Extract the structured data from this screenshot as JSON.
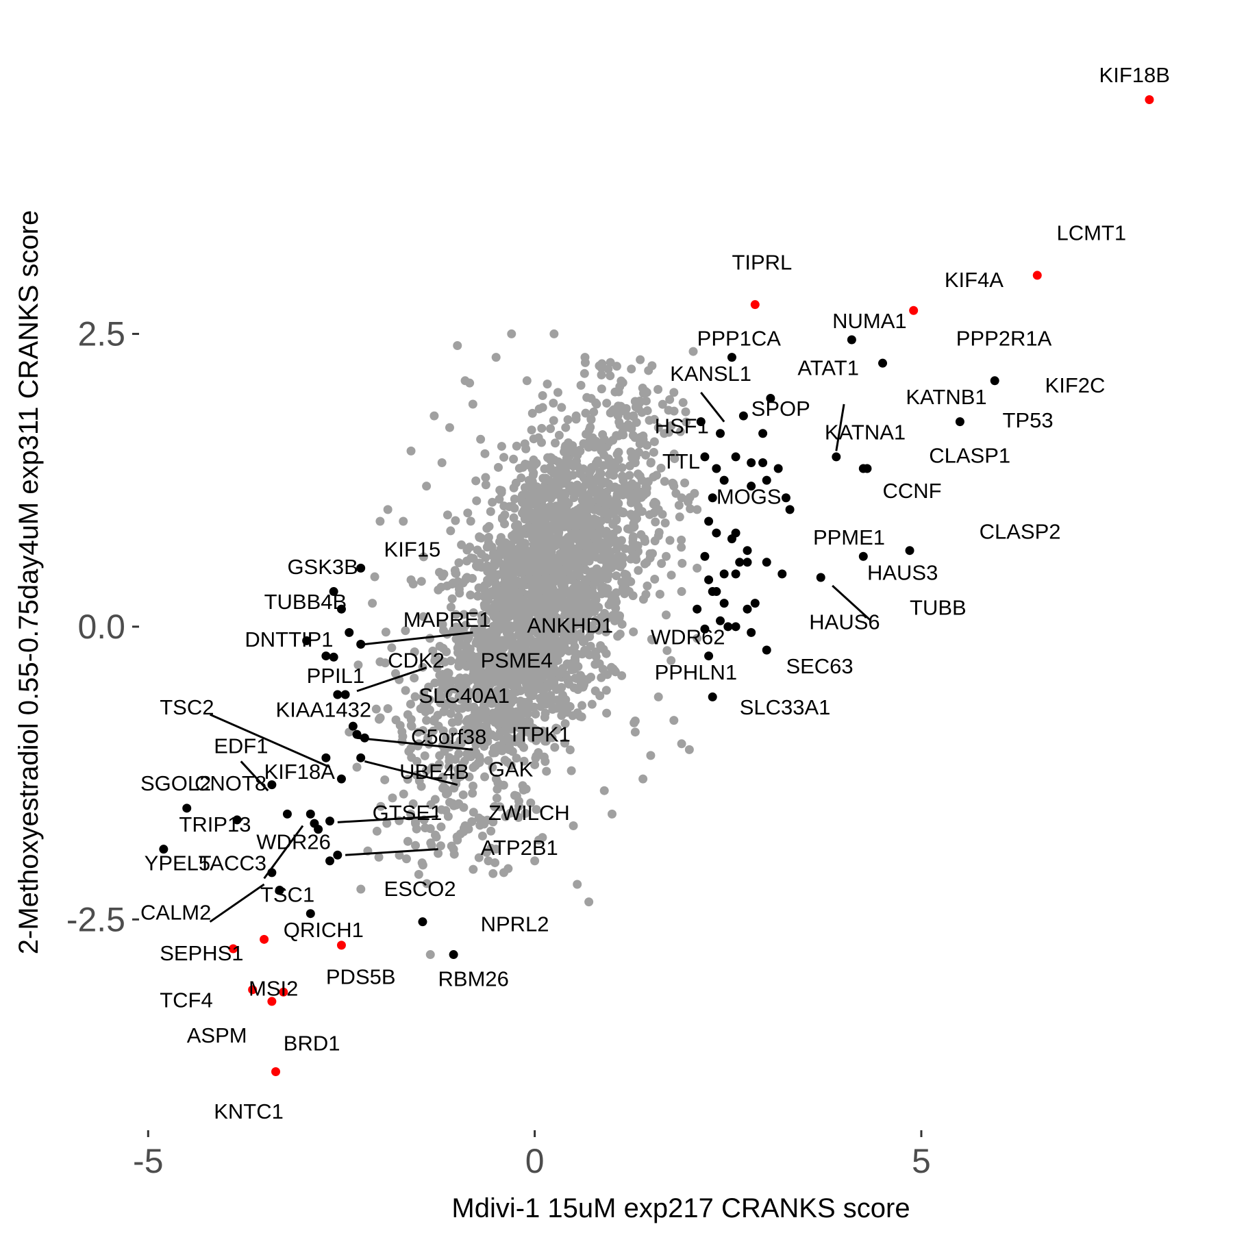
{
  "chart_data": {
    "type": "scatter",
    "xlabel": "Mdivi-1 15uM exp217 CRANKS score",
    "ylabel": "2-Methoxyestradiol 0.55-0.75day4uM exp311 CRANKS score",
    "xlim": [
      -5.1,
      8.5
    ],
    "ylim": [
      -4.3,
      5.0
    ],
    "x_ticks": [
      {
        "value": -5,
        "label": "-5"
      },
      {
        "value": 0,
        "label": "0"
      },
      {
        "value": 5,
        "label": "5"
      }
    ],
    "y_ticks": [
      {
        "value": -2.5,
        "label": "-2.5"
      },
      {
        "value": 0,
        "label": "0.0"
      },
      {
        "value": 2.5,
        "label": "2.5"
      }
    ],
    "grid": false,
    "background_cloud": {
      "color": "#a0a0a0",
      "points": [
        [
          -1.0,
          2.4
        ],
        [
          -0.3,
          2.5
        ],
        [
          -0.5,
          2.3
        ],
        [
          0.25,
          2.5
        ],
        [
          0.65,
          2.3
        ],
        [
          0.95,
          2.2
        ],
        [
          1.25,
          2.2
        ],
        [
          1.1,
          2.05
        ],
        [
          1.45,
          2.0
        ],
        [
          -1.3,
          1.8
        ],
        [
          -1.6,
          1.5
        ],
        [
          -0.8,
          1.9
        ],
        [
          -0.1,
          2.1
        ],
        [
          0.3,
          2.0
        ],
        [
          1.8,
          2.0
        ],
        [
          2.05,
          2.35
        ],
        [
          1.6,
          1.7
        ],
        [
          -1.9,
          1.0
        ],
        [
          -1.2,
          1.4
        ],
        [
          -2.0,
          0.9
        ],
        [
          1.8,
          1.2
        ],
        [
          1.9,
          1.1
        ],
        [
          2.1,
          1.0
        ],
        [
          2.1,
          0.5
        ],
        [
          1.9,
          0.3
        ],
        [
          1.7,
          0.1
        ],
        [
          -2.1,
          0.2
        ],
        [
          -1.6,
          0.4
        ],
        [
          -1.8,
          -0.4
        ],
        [
          -1.4,
          -0.8
        ],
        [
          -1.2,
          -1.3
        ],
        [
          -0.9,
          -1.7
        ],
        [
          -0.5,
          -1.9
        ],
        [
          0.1,
          -1.8
        ],
        [
          0.5,
          -1.7
        ],
        [
          0.9,
          -1.4
        ],
        [
          1.3,
          -0.9
        ],
        [
          1.6,
          -0.6
        ],
        [
          1.9,
          -1.0
        ],
        [
          2.0,
          -1.05
        ],
        [
          0.55,
          -2.2
        ],
        [
          0.7,
          -2.35
        ],
        [
          -0.4,
          -2.1
        ],
        [
          0.0,
          -2.0
        ],
        [
          1.0,
          -1.6
        ],
        [
          1.4,
          -1.3
        ],
        [
          1.8,
          -0.8
        ],
        [
          -1.5,
          -1.0
        ],
        [
          -2.0,
          -0.3
        ],
        [
          -1.7,
          0.9
        ],
        [
          -1.4,
          1.2
        ],
        [
          -0.7,
          1.6
        ],
        [
          0.4,
          1.7
        ],
        [
          0.9,
          1.6
        ],
        [
          1.3,
          1.4
        ],
        [
          1.6,
          1.0
        ],
        [
          1.7,
          0.6
        ],
        [
          -1.1,
          1.7
        ],
        [
          1.2,
          1.8
        ],
        [
          -0.6,
          -2.0
        ],
        [
          -1.35,
          -2.8
        ],
        [
          -1.05,
          -1.9
        ],
        [
          -2.3,
          -1.2
        ],
        [
          -2.4,
          -0.9
        ],
        [
          -0.9,
          2.1
        ],
        [
          0.8,
          1.9
        ],
        [
          2.1,
          -0.1
        ],
        [
          -1.9,
          -0.7
        ],
        [
          1.5,
          -1.1
        ],
        [
          -1.1,
          -1.5
        ]
      ]
    },
    "series": [
      {
        "color": "#000000",
        "points": [
          [
            -2.25,
            0.5
          ],
          [
            -2.6,
            0.3
          ],
          [
            -2.5,
            0.15
          ],
          [
            -2.4,
            -0.05
          ],
          [
            -2.25,
            -0.15
          ],
          [
            -2.95,
            -0.12
          ],
          [
            -2.7,
            -0.25
          ],
          [
            -2.6,
            -0.26
          ],
          [
            -2.55,
            -0.58
          ],
          [
            -2.45,
            -0.58
          ],
          [
            -2.35,
            -0.85
          ],
          [
            -2.3,
            -0.92
          ],
          [
            -2.2,
            -0.95
          ],
          [
            -2.7,
            -1.12
          ],
          [
            -2.25,
            -1.12
          ],
          [
            -2.5,
            -1.3
          ],
          [
            -3.4,
            -1.35
          ],
          [
            -4.5,
            -1.55
          ],
          [
            -3.85,
            -1.65
          ],
          [
            -2.9,
            -1.6
          ],
          [
            -2.85,
            -1.68
          ],
          [
            -2.8,
            -1.73
          ],
          [
            -2.65,
            -1.66
          ],
          [
            -3.2,
            -1.6
          ],
          [
            -2.55,
            -1.95
          ],
          [
            -2.65,
            -2.0
          ],
          [
            -4.8,
            -1.9
          ],
          [
            -3.4,
            -2.1
          ],
          [
            -3.3,
            -2.25
          ],
          [
            -2.9,
            -2.45
          ],
          [
            -1.45,
            -2.52
          ],
          [
            -1.05,
            -2.8
          ],
          [
            2.15,
            1.75
          ],
          [
            2.55,
            2.3
          ],
          [
            2.7,
            1.8
          ],
          [
            3.05,
            1.95
          ],
          [
            2.95,
            1.65
          ],
          [
            2.4,
            1.65
          ],
          [
            4.1,
            2.45
          ],
          [
            4.5,
            2.25
          ],
          [
            5.95,
            2.1
          ],
          [
            5.5,
            1.75
          ],
          [
            3.9,
            1.45
          ],
          [
            4.25,
            1.35
          ],
          [
            4.3,
            1.35
          ],
          [
            2.2,
            1.45
          ],
          [
            2.35,
            1.35
          ],
          [
            2.6,
            1.45
          ],
          [
            2.8,
            1.4
          ],
          [
            2.95,
            1.4
          ],
          [
            3.0,
            1.25
          ],
          [
            3.15,
            1.35
          ],
          [
            2.8,
            1.2
          ],
          [
            3.25,
            1.1
          ],
          [
            2.45,
            1.25
          ],
          [
            2.3,
            1.1
          ],
          [
            3.3,
            1.0
          ],
          [
            2.25,
            0.9
          ],
          [
            2.35,
            0.8
          ],
          [
            2.6,
            0.8
          ],
          [
            2.55,
            0.75
          ],
          [
            2.75,
            0.65
          ],
          [
            2.65,
            0.55
          ],
          [
            2.25,
            0.4
          ],
          [
            2.45,
            0.45
          ],
          [
            2.75,
            0.55
          ],
          [
            3.0,
            0.55
          ],
          [
            2.2,
            0.6
          ],
          [
            2.3,
            0.3
          ],
          [
            2.35,
            0.3
          ],
          [
            2.6,
            0.45
          ],
          [
            2.45,
            0.2
          ],
          [
            2.4,
            0.05
          ],
          [
            2.5,
            0.0
          ],
          [
            2.75,
            0.15
          ],
          [
            3.2,
            0.45
          ],
          [
            3.7,
            0.42
          ],
          [
            4.25,
            0.6
          ],
          [
            4.85,
            0.65
          ],
          [
            2.1,
            0.15
          ],
          [
            2.2,
            -0.02
          ],
          [
            2.25,
            -0.25
          ],
          [
            2.3,
            -0.6
          ],
          [
            2.6,
            0.0
          ],
          [
            2.8,
            -0.05
          ],
          [
            2.85,
            0.2
          ],
          [
            3.0,
            -0.2
          ]
        ]
      },
      {
        "color": "#ff0000",
        "points": [
          [
            7.95,
            4.5
          ],
          [
            6.5,
            3.0
          ],
          [
            2.85,
            2.75
          ],
          [
            4.9,
            2.7
          ],
          [
            -3.5,
            -2.67
          ],
          [
            -3.9,
            -2.75
          ],
          [
            -2.5,
            -2.72
          ],
          [
            -3.65,
            -3.1
          ],
          [
            -3.25,
            -3.12
          ],
          [
            -3.4,
            -3.2
          ],
          [
            -3.35,
            -3.8
          ]
        ]
      }
    ],
    "labels": [
      {
        "text": "KIF18B",
        "x": 7.3,
        "y": 4.65
      },
      {
        "text": "LCMT1",
        "x": 6.75,
        "y": 3.3
      },
      {
        "text": "TIPRL",
        "x": 2.55,
        "y": 3.05
      },
      {
        "text": "KIF4A",
        "x": 5.3,
        "y": 2.9
      },
      {
        "text": "NUMA1",
        "x": 3.85,
        "y": 2.55
      },
      {
        "text": "PPP2R1A",
        "x": 5.45,
        "y": 2.4
      },
      {
        "text": "PPP1CA",
        "x": 2.1,
        "y": 2.4
      },
      {
        "text": "KANSL1",
        "x": 1.75,
        "y": 2.1
      },
      {
        "text": "ATAT1",
        "x": 3.4,
        "y": 2.15
      },
      {
        "text": "KIF2C",
        "x": 6.6,
        "y": 2.0
      },
      {
        "text": "KATNB1",
        "x": 4.8,
        "y": 1.9
      },
      {
        "text": "SPOP",
        "x": 2.8,
        "y": 1.8
      },
      {
        "text": "TP53",
        "x": 6.05,
        "y": 1.7
      },
      {
        "text": "HSF1",
        "x": 1.55,
        "y": 1.65
      },
      {
        "text": "KATNA1",
        "x": 3.75,
        "y": 1.6
      },
      {
        "text": "CLASP1",
        "x": 5.1,
        "y": 1.4
      },
      {
        "text": "TTL",
        "x": 1.65,
        "y": 1.35
      },
      {
        "text": "CCNF",
        "x": 4.5,
        "y": 1.1
      },
      {
        "text": "MOGS",
        "x": 2.35,
        "y": 1.05
      },
      {
        "text": "CLASP2",
        "x": 5.75,
        "y": 0.75
      },
      {
        "text": "PPME1",
        "x": 3.6,
        "y": 0.7
      },
      {
        "text": "HAUS3",
        "x": 4.3,
        "y": 0.4
      },
      {
        "text": "TUBB",
        "x": 4.85,
        "y": 0.1
      },
      {
        "text": "HAUS6",
        "x": 3.55,
        "y": -0.02
      },
      {
        "text": "WDR62",
        "x": 1.5,
        "y": -0.15
      },
      {
        "text": "SEC63",
        "x": 3.25,
        "y": -0.4
      },
      {
        "text": "PPHLN1",
        "x": 1.55,
        "y": -0.45
      },
      {
        "text": "SLC33A1",
        "x": 2.65,
        "y": -0.75
      },
      {
        "text": "KIF15",
        "x": -1.95,
        "y": 0.6
      },
      {
        "text": "GSK3B",
        "x": -3.2,
        "y": 0.45
      },
      {
        "text": "TUBB4B",
        "x": -3.5,
        "y": 0.15
      },
      {
        "text": "MAPRE1",
        "x": -1.7,
        "y": 0.0
      },
      {
        "text": "ANKHD1",
        "x": -0.1,
        "y": -0.05
      },
      {
        "text": "DNTTIP1",
        "x": -3.75,
        "y": -0.17
      },
      {
        "text": "CDK2",
        "x": -1.9,
        "y": -0.35
      },
      {
        "text": "PSME4",
        "x": -0.7,
        "y": -0.35
      },
      {
        "text": "PPIL1",
        "x": -2.95,
        "y": -0.48
      },
      {
        "text": "SLC40A1",
        "x": -1.5,
        "y": -0.65
      },
      {
        "text": "TSC2",
        "x": -4.85,
        "y": -0.75
      },
      {
        "text": "KIAA1432",
        "x": -3.35,
        "y": -0.77
      },
      {
        "text": "C5orf38",
        "x": -1.6,
        "y": -1.0
      },
      {
        "text": "ITPK1",
        "x": -0.3,
        "y": -0.98
      },
      {
        "text": "EDF1",
        "x": -4.15,
        "y": -1.08
      },
      {
        "text": "UBE4B",
        "x": -1.75,
        "y": -1.3
      },
      {
        "text": "GAK",
        "x": -0.6,
        "y": -1.28
      },
      {
        "text": "KIF18A",
        "x": -3.5,
        "y": -1.3
      },
      {
        "text": "SGOL2",
        "x": -5.1,
        "y": -1.4
      },
      {
        "text": "CNOT8",
        "x": -4.4,
        "y": -1.4
      },
      {
        "text": "GTSE1",
        "x": -2.1,
        "y": -1.65
      },
      {
        "text": "ZWILCH",
        "x": -0.6,
        "y": -1.65
      },
      {
        "text": "TRIP13",
        "x": -4.6,
        "y": -1.75
      },
      {
        "text": "WDR26",
        "x": -3.6,
        "y": -1.9
      },
      {
        "text": "ATP2B1",
        "x": -0.7,
        "y": -1.95
      },
      {
        "text": "YPEL5",
        "x": -5.05,
        "y": -2.08
      },
      {
        "text": "TACC3",
        "x": -4.35,
        "y": -2.08
      },
      {
        "text": "ESCO2",
        "x": -1.95,
        "y": -2.3
      },
      {
        "text": "TSC1",
        "x": -3.55,
        "y": -2.35
      },
      {
        "text": "CALM2",
        "x": -5.1,
        "y": -2.5
      },
      {
        "text": "QRICH1",
        "x": -3.25,
        "y": -2.65
      },
      {
        "text": "NPRL2",
        "x": -0.7,
        "y": -2.6
      },
      {
        "text": "SEPHS1",
        "x": -4.85,
        "y": -2.85
      },
      {
        "text": "PDS5B",
        "x": -2.7,
        "y": -3.05
      },
      {
        "text": "RBM26",
        "x": -1.25,
        "y": -3.07
      },
      {
        "text": "MSI2",
        "x": -3.7,
        "y": -3.15
      },
      {
        "text": "TCF4",
        "x": -4.85,
        "y": -3.25
      },
      {
        "text": "ASPM",
        "x": -4.5,
        "y": -3.55
      },
      {
        "text": "BRD1",
        "x": -3.25,
        "y": -3.62
      },
      {
        "text": "KNTC1",
        "x": -4.15,
        "y": -4.2
      }
    ],
    "connectors": [
      [
        4.0,
        1.9,
        3.9,
        1.5
      ],
      [
        2.15,
        2.0,
        2.45,
        1.75
      ],
      [
        3.85,
        0.35,
        4.35,
        0.05
      ],
      [
        -2.2,
        -0.15,
        -0.8,
        -0.05
      ],
      [
        -2.3,
        -0.55,
        -1.4,
        -0.35
      ],
      [
        -4.2,
        -0.75,
        -2.65,
        -1.2
      ],
      [
        -2.3,
        -0.95,
        -0.8,
        -1.05
      ],
      [
        -2.2,
        -1.15,
        -1.0,
        -1.35
      ],
      [
        -3.8,
        -1.15,
        -3.45,
        -1.4
      ],
      [
        -2.55,
        -1.67,
        -1.25,
        -1.62
      ],
      [
        -2.45,
        -1.95,
        -1.25,
        -1.9
      ],
      [
        -3.5,
        -2.15,
        -3.0,
        -1.7
      ],
      [
        -4.2,
        -2.52,
        -3.5,
        -2.2
      ]
    ]
  }
}
